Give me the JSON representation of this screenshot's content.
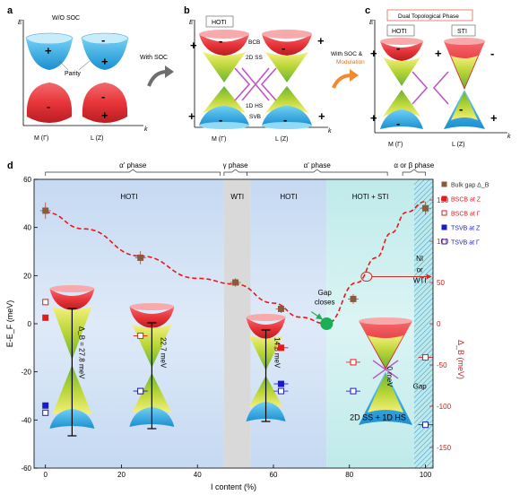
{
  "panels": {
    "a": {
      "letter": "a",
      "title": "W/O SOC",
      "parity_label": "Parity",
      "xlabel": "k",
      "ylabel": "E",
      "k_labels": [
        "M (Γ)",
        "L (Z)"
      ],
      "signs": [
        "+",
        "-",
        "+",
        "-",
        "+",
        "-"
      ]
    },
    "b": {
      "letter": "b",
      "tag": "HOTI",
      "xlabel": "k",
      "ylabel": "E",
      "annotations": [
        "BCB",
        "2D SS",
        "1D HS",
        "SVB"
      ],
      "k_labels": [
        "M (Γ)",
        "L (Z)"
      ],
      "signs": [
        "+",
        "-",
        "+",
        "-",
        "+",
        "-",
        "+",
        "-"
      ]
    },
    "c": {
      "letter": "c",
      "header": "Dual Topological Phase",
      "tags": [
        "HOTI",
        "STI"
      ],
      "xlabel": "k",
      "ylabel": "E",
      "k_labels": [
        "M (Γ)",
        "L (Z)"
      ],
      "signs": [
        "+",
        "-",
        "+",
        "-",
        "+",
        "-",
        "+",
        "-"
      ]
    },
    "arrow_ab": "With SOC",
    "arrow_bc": [
      "With SOC &",
      "Modulation"
    ],
    "colors": {
      "arrow_ab": "#6e6e6e",
      "arrow_bc": "#f28a30",
      "modulation_text": "#d8732a",
      "upper_cone": "#e8353a",
      "lower_cone": "#2aa8e0",
      "mid_cone": "#b7d436",
      "hinge": "#c056c8",
      "header_border": "#e0675a"
    }
  },
  "chart_data": {
    "type": "scatter",
    "panel_letter": "d",
    "xlabel": "I content (%)",
    "ylabel_left": "E-E_F (meV)",
    "ylabel_right": "Δ_B (meV)",
    "xlim": [
      -3,
      102
    ],
    "ylim_left": [
      -60,
      60
    ],
    "ylim_right": [
      -175,
      175
    ],
    "xticks": [
      0,
      20,
      40,
      60,
      80,
      100
    ],
    "yticks_left": [
      -60,
      -40,
      -20,
      0,
      20,
      40,
      60
    ],
    "yticks_right": [
      -150,
      -100,
      -50,
      0,
      50,
      100,
      150
    ],
    "grid": false,
    "legend_position": "right",
    "phases_top": [
      {
        "label": "α' phase",
        "from": 0,
        "to": 46
      },
      {
        "label": "γ phase",
        "from": 47,
        "to": 53
      },
      {
        "label": "α' phase",
        "from": 53,
        "to": 90
      },
      {
        "label": "α or β phase",
        "from": 94,
        "to": 100
      }
    ],
    "regions": [
      {
        "label": "HOTI",
        "from": -3,
        "to": 47,
        "color": "#c9dcf3"
      },
      {
        "label": "WTI",
        "from": 47,
        "to": 54,
        "color": "#d9d9d9"
      },
      {
        "label": "HOTI",
        "from": 54,
        "to": 74,
        "color": "#c9dcf3"
      },
      {
        "label": "HOTI + STI",
        "from": 74,
        "to": 97,
        "color": "#c3ecec"
      }
    ],
    "series": [
      {
        "name": "Bulk gap Δ_B",
        "axis": "right",
        "marker": "square-filled",
        "color": "#8b5a3c",
        "x": [
          0,
          25,
          50,
          62,
          81,
          100
        ],
        "y": [
          137,
          80,
          50,
          18,
          30,
          140
        ],
        "yerr": [
          10,
          8,
          5,
          5,
          6,
          8
        ]
      },
      {
        "name": "BSCB at Z",
        "axis": "left",
        "marker": "square-filled",
        "color": "#e41a1c",
        "x": [
          0,
          62
        ],
        "y": [
          2.5,
          -10
        ]
      },
      {
        "name": "BSCB at Γ",
        "axis": "left",
        "marker": "square-open",
        "color": "#e41a1c",
        "x": [
          0,
          25,
          81,
          100
        ],
        "y": [
          9,
          -5,
          -16,
          -14
        ]
      },
      {
        "name": "TSVB at Z",
        "axis": "left",
        "marker": "square-filled",
        "color": "#1a1ac8",
        "x": [
          0,
          25,
          62
        ],
        "y": [
          -34,
          -28,
          -25
        ]
      },
      {
        "name": "TSVB at Γ",
        "axis": "left",
        "marker": "square-open",
        "color": "#1a1ac8",
        "x": [
          0,
          25,
          62,
          81,
          100
        ],
        "y": [
          -37,
          -28,
          -28,
          -28,
          -42
        ]
      }
    ],
    "gap_fit": {
      "x": [
        0,
        10,
        25,
        40,
        50,
        60,
        67,
        74,
        82,
        87,
        91,
        95,
        100
      ],
      "y": [
        135,
        115,
        82,
        55,
        48,
        25,
        8,
        0,
        50,
        80,
        110,
        135,
        148
      ],
      "color": "#e41a1c"
    },
    "annotations": {
      "gap_closes": "Gap closes",
      "gap_closes_at": [
        74,
        0
      ],
      "ni_wti": [
        "NI",
        "or",
        "WTI"
      ],
      "gap_label": "Gap",
      "bottom_label": "2D SS + 1D HS",
      "gap_values": [
        {
          "label": "Δ_B = 27.8 meV",
          "x_axis": 6.5,
          "y_axis": -12
        },
        {
          "label": "22.7 meV",
          "x_axis": 28,
          "y_axis": -12
        },
        {
          "label": "14.8 meV",
          "x_axis": 58,
          "y_axis": -12
        },
        {
          "label": "0 meV",
          "x_axis": 90,
          "y_axis": -22
        }
      ]
    }
  }
}
